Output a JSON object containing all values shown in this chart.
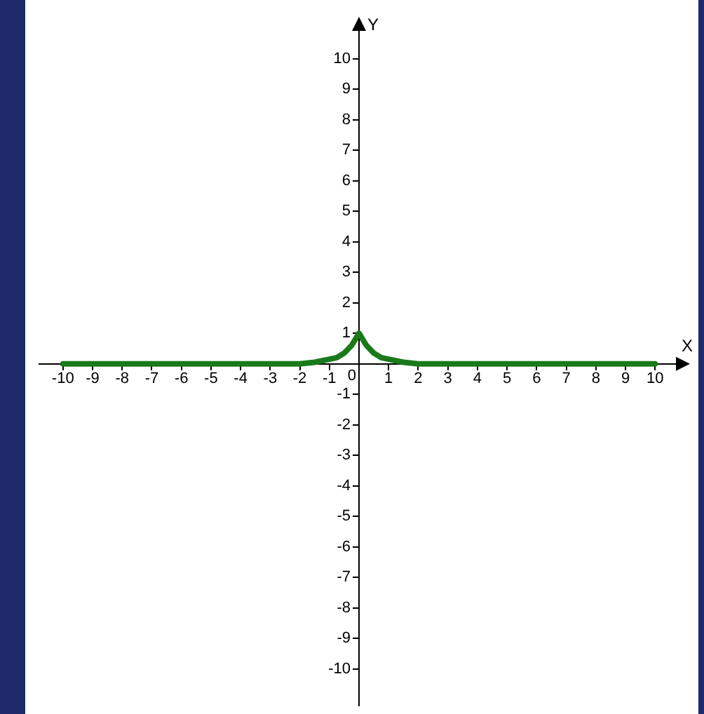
{
  "chart_data": {
    "type": "line",
    "xlabel": "X",
    "ylabel": "Y",
    "x": [
      -10,
      -2,
      -1.5,
      -1,
      -0.75,
      -0.5,
      -0.25,
      0,
      0.25,
      0.5,
      0.75,
      1,
      1.5,
      2,
      10
    ],
    "series": [
      {
        "color": "#1a7a1a",
        "values": [
          0,
          0,
          0.05,
          0.15,
          0.2,
          0.35,
          0.6,
          1,
          0.6,
          0.35,
          0.2,
          0.15,
          0.05,
          0,
          0
        ]
      }
    ],
    "xlim": [
      -10.8,
      10.8
    ],
    "ylim": [
      -11.2,
      11
    ],
    "xticks": [
      -10,
      -9,
      -8,
      -7,
      -6,
      -5,
      -4,
      -3,
      -2,
      -1,
      0,
      1,
      2,
      3,
      4,
      5,
      6,
      7,
      8,
      9,
      10
    ],
    "yticks": [
      -10,
      -9,
      -8,
      -7,
      -6,
      -5,
      -4,
      -3,
      -2,
      -1,
      {
        "value": 0,
        "label": null
      },
      1,
      2,
      3,
      4,
      5,
      6,
      7,
      8,
      9,
      10
    ],
    "grid": false,
    "legend": false,
    "marker": "none",
    "line_style": "solid"
  }
}
